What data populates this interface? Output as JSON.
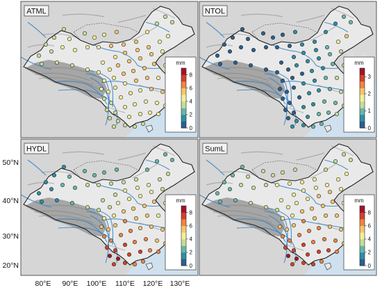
{
  "figure": {
    "panels": [
      {
        "id": "atml",
        "label": "ATML",
        "colorbar": {
          "unit": "mm",
          "ticks": [
            "0",
            "2",
            "4",
            "6",
            "8"
          ],
          "max": 9
        }
      },
      {
        "id": "ntol",
        "label": "NTOL",
        "colorbar": {
          "unit": "mm",
          "ticks": [
            "0",
            "1",
            "2",
            "3"
          ],
          "max": 3.5
        }
      },
      {
        "id": "hydl",
        "label": "HYDL",
        "colorbar": {
          "unit": "mm",
          "ticks": [
            "0",
            "2",
            "4",
            "6",
            "8"
          ],
          "max": 9
        }
      },
      {
        "id": "suml",
        "label": "SumL",
        "colorbar": {
          "unit": "mm",
          "ticks": [
            "0",
            "2",
            "4",
            "6",
            "8"
          ],
          "max": 9
        }
      }
    ],
    "lat_labels": [
      "50°N",
      "40°N",
      "30°N",
      "20°N"
    ],
    "lon_labels": [
      "80°E",
      "90°E",
      "100°E",
      "110°E",
      "120°E",
      "130°E"
    ],
    "colors": {
      "ocean": "#cfe0ee",
      "land": "#d9d9d9",
      "plateau": "#8f8f8f",
      "border": "#222222",
      "river": "#3a86c8",
      "colormap": [
        "#2b5f8c",
        "#2e8ea6",
        "#67b7a8",
        "#c4dd9a",
        "#f1ef9a",
        "#f6c56d",
        "#ee8442",
        "#d2412b",
        "#a3132a"
      ]
    }
  }
}
